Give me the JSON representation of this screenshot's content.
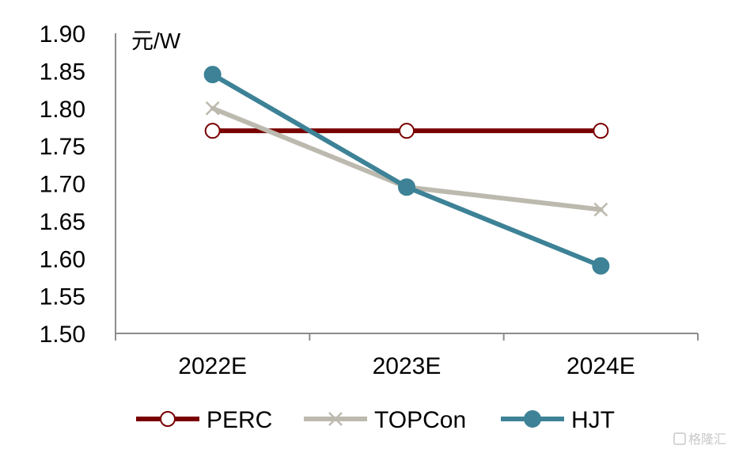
{
  "chart_data": {
    "type": "line",
    "unit_label": "元/W",
    "categories": [
      "2022E",
      "2023E",
      "2024E"
    ],
    "ylim": [
      1.5,
      1.9
    ],
    "yticks": [
      "1.90",
      "1.85",
      "1.80",
      "1.75",
      "1.70",
      "1.65",
      "1.60",
      "1.55",
      "1.50"
    ],
    "grid": false,
    "legend_position": "bottom",
    "series": [
      {
        "name": "PERC",
        "values": [
          1.77,
          1.77,
          1.77
        ],
        "color": "#7a0000",
        "marker": "open-circle"
      },
      {
        "name": "TOPCon",
        "values": [
          1.8,
          1.695,
          1.665
        ],
        "color": "#bcb9ae",
        "marker": "x"
      },
      {
        "name": "HJT",
        "values": [
          1.845,
          1.695,
          1.59
        ],
        "color": "#3d8296",
        "marker": "filled-circle"
      }
    ]
  },
  "watermark": {
    "text": "格隆汇"
  }
}
